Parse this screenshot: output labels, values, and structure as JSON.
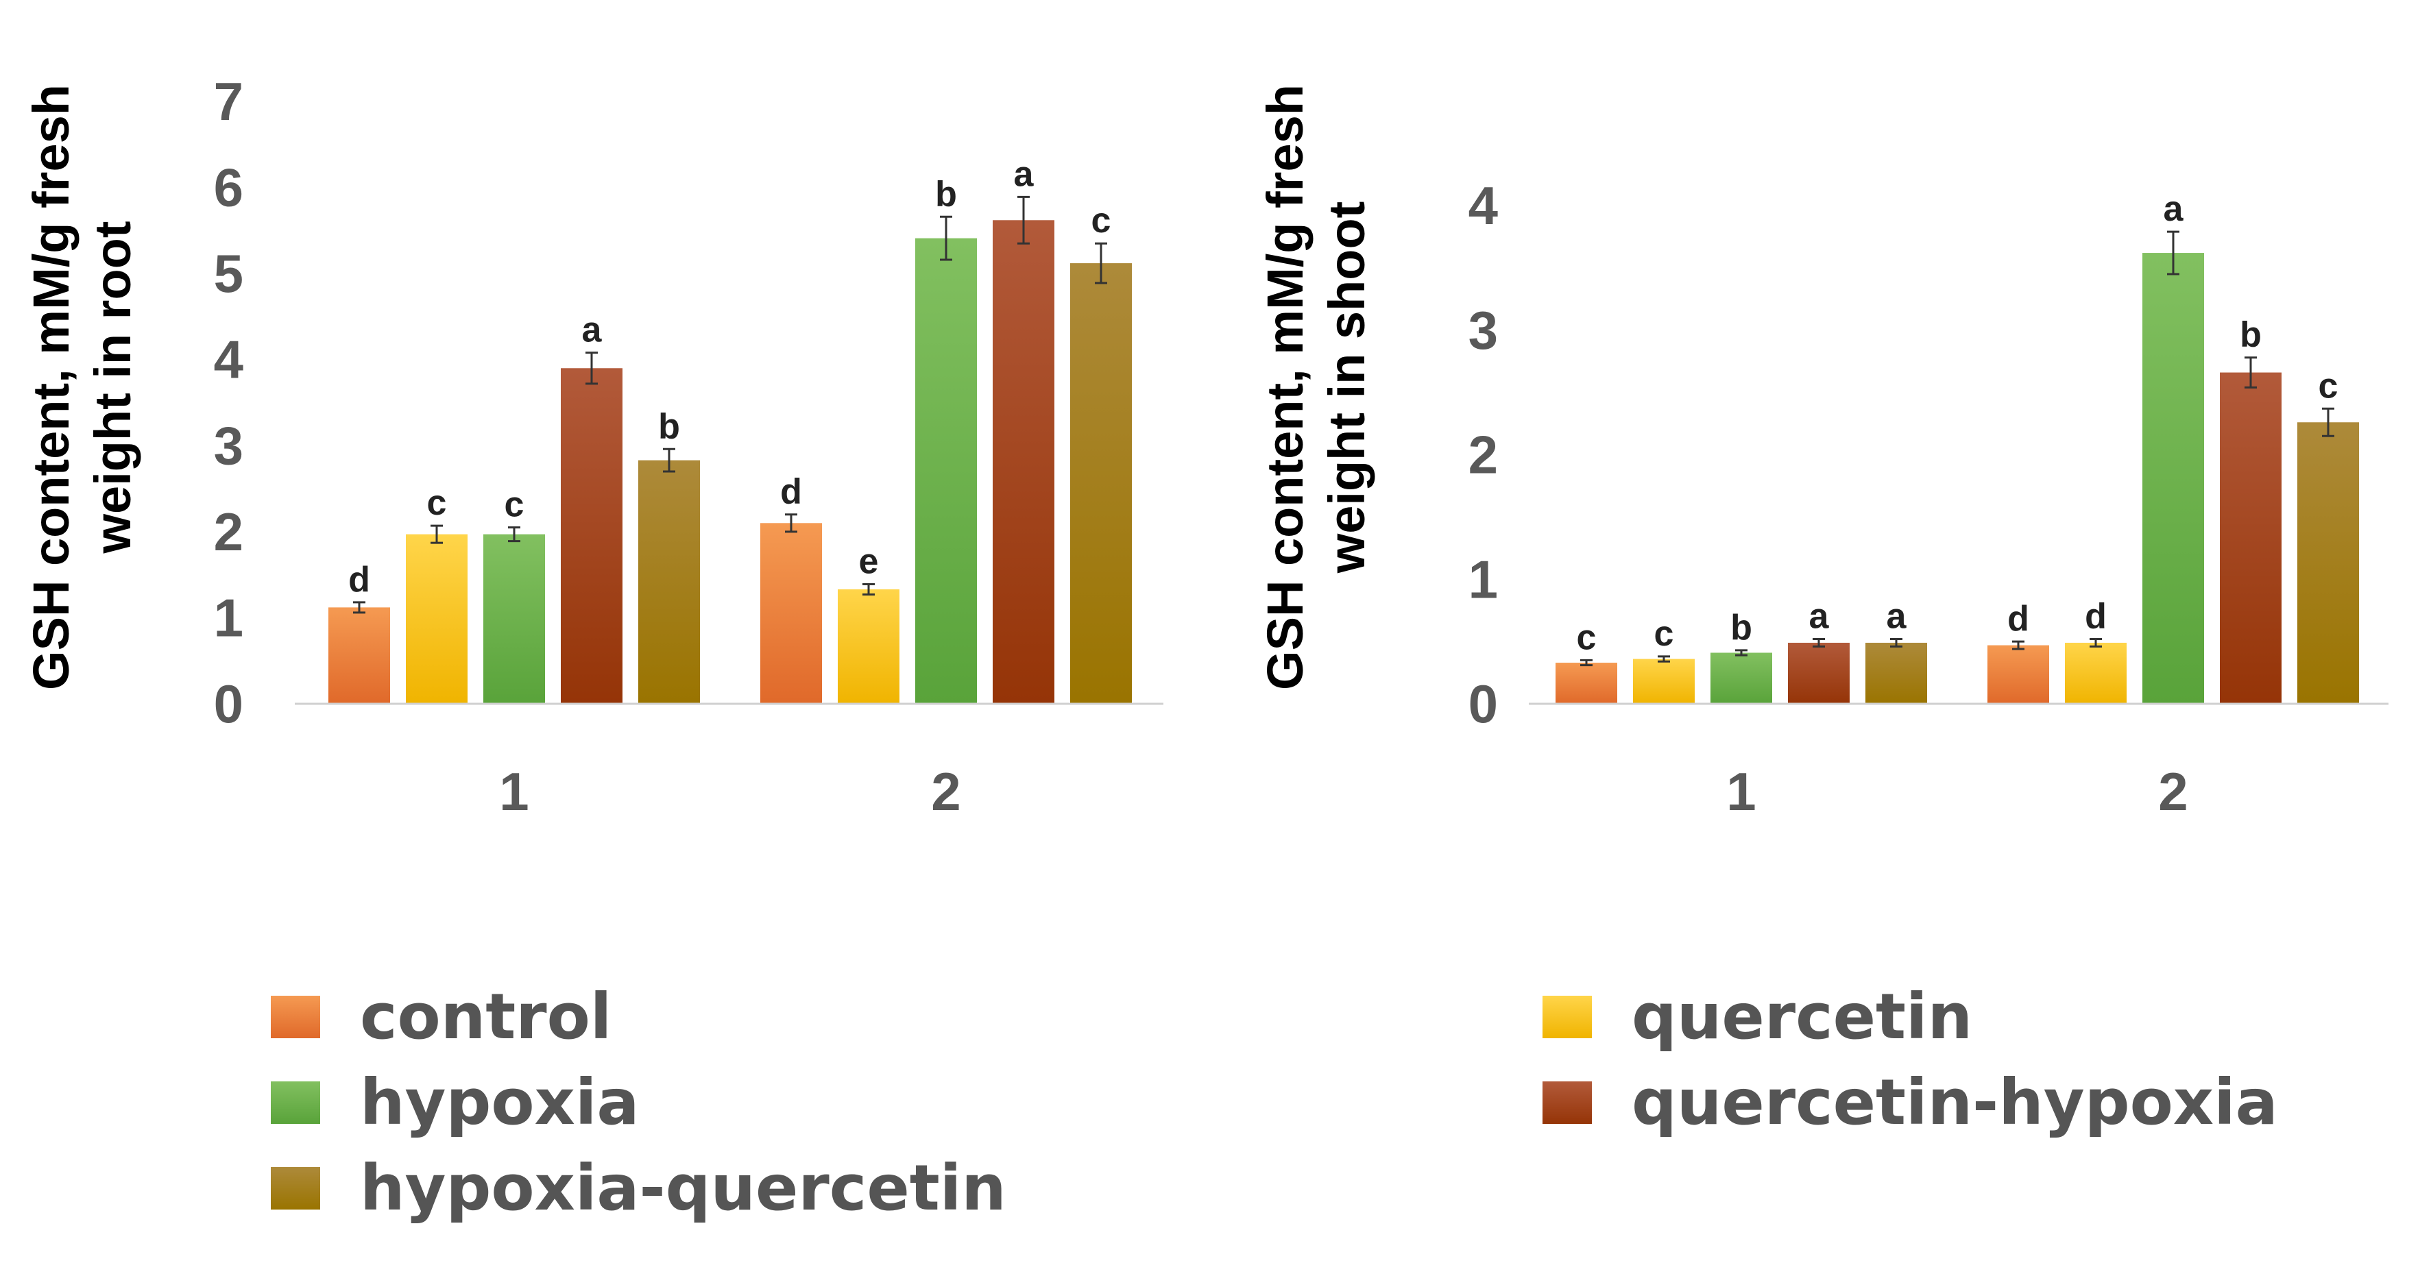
{
  "series_styles": [
    {
      "name": "control",
      "light": "#f59a52",
      "dark": "#e0692a"
    },
    {
      "name": "quercetin",
      "light": "#ffd54a",
      "dark": "#f0b400"
    },
    {
      "name": "hypoxia",
      "light": "#82c060",
      "dark": "#59a33a"
    },
    {
      "name": "quercetin-hypoxia",
      "light": "#b25a3a",
      "dark": "#953407"
    },
    {
      "name": "hypoxia-quercetin",
      "light": "#ad8a3a",
      "dark": "#9a7400"
    }
  ],
  "legend": {
    "items": [
      "control",
      "quercetin",
      "hypoxia",
      "quercetin-hypoxia",
      "hypoxia-quercetin"
    ]
  },
  "chart_data": [
    {
      "type": "bar",
      "ylabel_lines": [
        "GSH content, mM/g fresh",
        "weight  in root"
      ],
      "categories": [
        "1",
        "2"
      ],
      "ylim": [
        0,
        7
      ],
      "yticks": [
        "0",
        "1",
        "2",
        "3",
        "4",
        "5",
        "6",
        "7"
      ],
      "series": [
        {
          "name": "control",
          "values": [
            1.12,
            2.1
          ],
          "errors": [
            0.06,
            0.1
          ],
          "letters": [
            "d",
            "d"
          ]
        },
        {
          "name": "quercetin",
          "values": [
            1.97,
            1.33
          ],
          "errors": [
            0.1,
            0.06
          ],
          "letters": [
            "c",
            "e"
          ]
        },
        {
          "name": "hypoxia",
          "values": [
            1.97,
            5.41
          ],
          "errors": [
            0.08,
            0.25
          ],
          "letters": [
            "c",
            "b"
          ]
        },
        {
          "name": "quercetin-hypoxia",
          "values": [
            3.9,
            5.62
          ],
          "errors": [
            0.18,
            0.27
          ],
          "letters": [
            "a",
            "a"
          ]
        },
        {
          "name": "hypoxia-quercetin",
          "values": [
            2.83,
            5.12
          ],
          "errors": [
            0.13,
            0.23
          ],
          "letters": [
            "b",
            "c"
          ]
        }
      ]
    },
    {
      "type": "bar",
      "ylabel_lines": [
        "GSH content, mM/g fresh",
        "weight  in shoot"
      ],
      "categories": [
        "1",
        "2"
      ],
      "ylim": [
        0,
        4
      ],
      "yticks": [
        "0",
        "1",
        "2",
        "3",
        "4"
      ],
      "series": [
        {
          "name": "control",
          "values": [
            0.33,
            0.47
          ],
          "errors": [
            0.02,
            0.03
          ],
          "letters": [
            "c",
            "d"
          ]
        },
        {
          "name": "quercetin",
          "values": [
            0.36,
            0.49
          ],
          "errors": [
            0.02,
            0.03
          ],
          "letters": [
            "c",
            "d"
          ]
        },
        {
          "name": "hypoxia",
          "values": [
            0.41,
            3.62
          ],
          "errors": [
            0.02,
            0.17
          ],
          "letters": [
            "b",
            "a"
          ]
        },
        {
          "name": "quercetin-hypoxia",
          "values": [
            0.49,
            2.66
          ],
          "errors": [
            0.03,
            0.12
          ],
          "letters": [
            "a",
            "b"
          ]
        },
        {
          "name": "hypoxia-quercetin",
          "values": [
            0.49,
            2.26
          ],
          "errors": [
            0.03,
            0.11
          ],
          "letters": [
            "a",
            "c"
          ]
        }
      ]
    }
  ]
}
